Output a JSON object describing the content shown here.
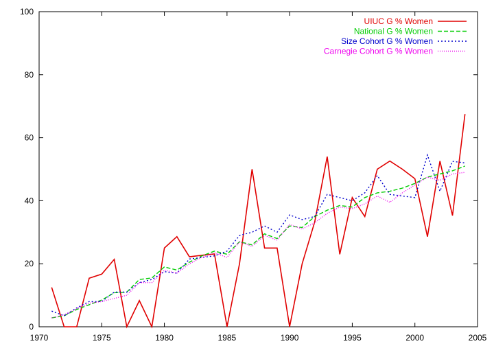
{
  "chart_data": {
    "type": "line",
    "title": "",
    "xlabel": "",
    "ylabel": "",
    "xlim": [
      1970,
      2005
    ],
    "ylim": [
      0,
      100
    ],
    "xticks": [
      1970,
      1975,
      1980,
      1985,
      1990,
      1995,
      2000,
      2005
    ],
    "yticks": [
      0,
      20,
      40,
      60,
      80,
      100
    ],
    "grid": false,
    "legend_position": "top-right",
    "series": [
      {
        "name": "UIUC G % Women",
        "color": "#e00000",
        "dash": "solid",
        "x": [
          1971,
          1972,
          1973,
          1974,
          1975,
          1976,
          1977,
          1978,
          1979,
          1980,
          1981,
          1982,
          1983,
          1984,
          1985,
          1986,
          1987,
          1988,
          1989,
          1990,
          1991,
          1992,
          1993,
          1994,
          1995,
          1996,
          1997,
          1998,
          1999,
          2000,
          2001,
          2002,
          2003,
          2004
        ],
        "y": [
          12.5,
          0,
          0,
          15.4,
          16.7,
          21.4,
          0,
          8.3,
          0,
          25,
          28.6,
          22.2,
          22.7,
          23.1,
          0,
          20,
          50,
          25,
          25,
          0,
          20,
          33.3,
          54,
          23,
          41,
          35,
          50,
          52.6,
          50,
          47,
          28.6,
          52.6,
          35.3,
          67.5
        ]
      },
      {
        "name": "National G % Women",
        "color": "#00cc00",
        "dash": "dashed",
        "x": [
          1971,
          1972,
          1973,
          1974,
          1975,
          1976,
          1977,
          1978,
          1979,
          1980,
          1981,
          1982,
          1983,
          1984,
          1985,
          1986,
          1987,
          1988,
          1989,
          1990,
          1991,
          1992,
          1993,
          1994,
          1995,
          1996,
          1997,
          1998,
          1999,
          2000,
          2001,
          2002,
          2003,
          2004
        ],
        "y": [
          2.8,
          3.5,
          5.5,
          7,
          8.5,
          10.8,
          11,
          15,
          15.5,
          19,
          18,
          20.5,
          22.5,
          24,
          23,
          27,
          26,
          29.5,
          28,
          32,
          31.5,
          35,
          37,
          38.5,
          38,
          41,
          42.5,
          43,
          44,
          45.5,
          47.5,
          48.5,
          49.5,
          51
        ]
      },
      {
        "name": "Size Cohort G % Women",
        "color": "#0000cc",
        "dash": "dotted",
        "x": [
          1971,
          1972,
          1973,
          1974,
          1975,
          1976,
          1977,
          1978,
          1979,
          1980,
          1981,
          1982,
          1983,
          1984,
          1985,
          1986,
          1987,
          1988,
          1989,
          1990,
          1991,
          1992,
          1993,
          1994,
          1995,
          1996,
          1997,
          1998,
          1999,
          2000,
          2001,
          2002,
          2003,
          2004
        ],
        "y": [
          5,
          3.5,
          6,
          8,
          8,
          11,
          11,
          14,
          15,
          17.5,
          17,
          21.5,
          22,
          22.5,
          24,
          29,
          30,
          32,
          30,
          35.5,
          34,
          35,
          42,
          41,
          40,
          42.5,
          48,
          42,
          41.5,
          41,
          54.5,
          43,
          52.5,
          52
        ]
      },
      {
        "name": "Carnegie Cohort G % Women",
        "color": "#ee00ee",
        "dash": "dotted-fine",
        "x": [
          1971,
          1972,
          1973,
          1974,
          1975,
          1976,
          1977,
          1978,
          1979,
          1980,
          1981,
          1982,
          1983,
          1984,
          1985,
          1986,
          1987,
          1988,
          1989,
          1990,
          1991,
          1992,
          1993,
          1994,
          1995,
          1996,
          1997,
          1998,
          1999,
          2000,
          2001,
          2002,
          2003,
          2004
        ],
        "y": [
          2.8,
          3.8,
          5.8,
          7.5,
          8,
          9,
          10,
          14,
          14,
          18,
          17,
          20,
          22,
          23.5,
          22,
          27,
          25.5,
          29,
          27.5,
          32.5,
          31,
          33,
          36,
          38,
          37.5,
          39,
          41.5,
          39.5,
          42.5,
          45,
          47.5,
          46.5,
          48.5,
          49
        ]
      }
    ]
  }
}
